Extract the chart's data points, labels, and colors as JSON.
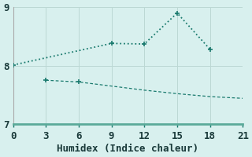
{
  "xlabel": "Humidex (Indice chaleur)",
  "bg_color": "#cce8e4",
  "plot_bg_color": "#d8f0ee",
  "line_color": "#1a7a6e",
  "grid_color": "#bcd8d4",
  "spine_color": "#5aaa99",
  "x_ticks": [
    0,
    3,
    6,
    9,
    12,
    15,
    18,
    21
  ],
  "ylim": [
    7,
    9
  ],
  "xlim": [
    0,
    21
  ],
  "line1_x": [
    0,
    9,
    12,
    15,
    18
  ],
  "line1_y": [
    8.01,
    8.38,
    8.37,
    8.9,
    8.28
  ],
  "line2_x": [
    3,
    6,
    9,
    12,
    15,
    18,
    21
  ],
  "line2_y": [
    7.75,
    7.72,
    7.65,
    7.58,
    7.52,
    7.47,
    7.44
  ],
  "yticks": [
    7,
    8,
    9
  ],
  "font_family": "monospace",
  "tick_fontsize": 9,
  "xlabel_fontsize": 9
}
